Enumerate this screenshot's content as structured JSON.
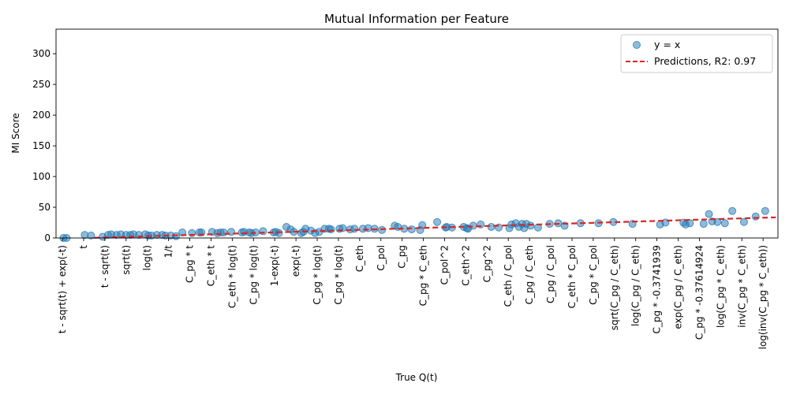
{
  "chart_data": {
    "type": "scatter",
    "title": "Mutual Information per Feature",
    "xlabel": "True Q(t)",
    "ylabel": "MI Score",
    "ylim": [
      0,
      340
    ],
    "yticks": [
      0,
      50,
      100,
      150,
      200,
      250,
      300
    ],
    "grid": false,
    "legend_position": "top-right",
    "categories": [
      "t - sqrt(t) + exp(-t)",
      "t",
      "t - sqrt(t)",
      "sqrt(t)",
      "log(t)",
      "1/t",
      "C_pg * t",
      "C_eth * t",
      "C_eth * log(t)",
      "C_pg * log(t)",
      "1-exp(-t)",
      "exp(-t)",
      "C_pg * log(t)",
      "C_pg * log(t)",
      "C_eth",
      "C_pol",
      "C_pg",
      "C_pg * C_eth",
      "C_pol^2",
      "C_eth^2",
      "C_pg^2",
      "C_eth / C_pol",
      "C_pg / C_eth",
      "C_pg / C_pol",
      "C_eth * C_pol",
      "C_pg * C_pol",
      "sqrt(C_pg / C_eth)",
      "log(C_pg / C_eth)",
      "C_pg * -0.3741939",
      "exp(C_pg / C_eth)",
      "C_pg * -0.37614924",
      "log(C_pg * C_eth)",
      "inv(C_pg * C_eth)",
      "log(inv(C_pg * C_eth))"
    ],
    "series": [
      {
        "name": "y = x",
        "color": "#1f77b4",
        "x": [
          0.05,
          0.2,
          1.05,
          1.35,
          1.9,
          2.15,
          2.3,
          2.55,
          2.75,
          3.0,
          3.2,
          3.35,
          3.6,
          3.9,
          4.05,
          4.2,
          4.45,
          4.7,
          4.85,
          5.1,
          5.35,
          5.65,
          6.1,
          6.45,
          6.55,
          7.05,
          7.3,
          7.45,
          7.6,
          7.95,
          8.45,
          8.55,
          8.8,
          8.9,
          9.1,
          9.45,
          9.95,
          10.05,
          10.2,
          10.55,
          10.75,
          10.9,
          11.25,
          11.35,
          11.45,
          11.7,
          11.9,
          12.1,
          12.35,
          12.55,
          12.65,
          13.05,
          13.2,
          13.55,
          13.75,
          14.15,
          14.4,
          14.7,
          15.05,
          15.65,
          15.8,
          16.1,
          16.45,
          16.85,
          16.95,
          17.65,
          18.05,
          18.1,
          18.35,
          18.9,
          19.05,
          19.1,
          19.35,
          19.7,
          20.2,
          20.55,
          21.05,
          21.15,
          21.35,
          21.5,
          21.65,
          21.75,
          21.85,
          22.05,
          22.4,
          22.95,
          23.35,
          23.65,
          24.4,
          25.25,
          25.95,
          26.85,
          28.15,
          28.4,
          29.25,
          29.35,
          29.55,
          30.2,
          30.45,
          30.6,
          30.85,
          31.2,
          31.55,
          32.1,
          32.65,
          33.1
        ],
        "y": [
          0,
          0,
          5,
          4,
          2,
          5,
          6,
          5,
          6,
          5,
          5,
          6,
          5,
          6,
          4,
          4,
          5,
          5,
          4,
          4,
          3,
          9,
          8,
          9,
          9,
          10,
          8,
          9,
          9,
          10,
          9,
          10,
          9,
          8,
          9,
          11,
          9,
          10,
          8,
          18,
          14,
          10,
          8,
          10,
          15,
          12,
          8,
          10,
          15,
          15,
          14,
          15,
          16,
          14,
          15,
          15,
          16,
          15,
          13,
          20,
          18,
          15,
          14,
          13,
          21,
          26,
          17,
          18,
          17,
          18,
          16,
          15,
          20,
          22,
          18,
          17,
          16,
          22,
          24,
          18,
          23,
          16,
          23,
          20,
          17,
          23,
          24,
          20,
          24,
          24,
          26,
          23,
          22,
          25,
          25,
          22,
          24,
          23,
          39,
          27,
          26,
          24,
          44,
          26,
          35,
          44
        ]
      },
      {
        "name": "Predictions, R2: 0.97",
        "color": "#d62728",
        "type": "line",
        "x": [
          1.5,
          33.6
        ],
        "y": [
          0.3,
          33.6
        ]
      }
    ]
  }
}
